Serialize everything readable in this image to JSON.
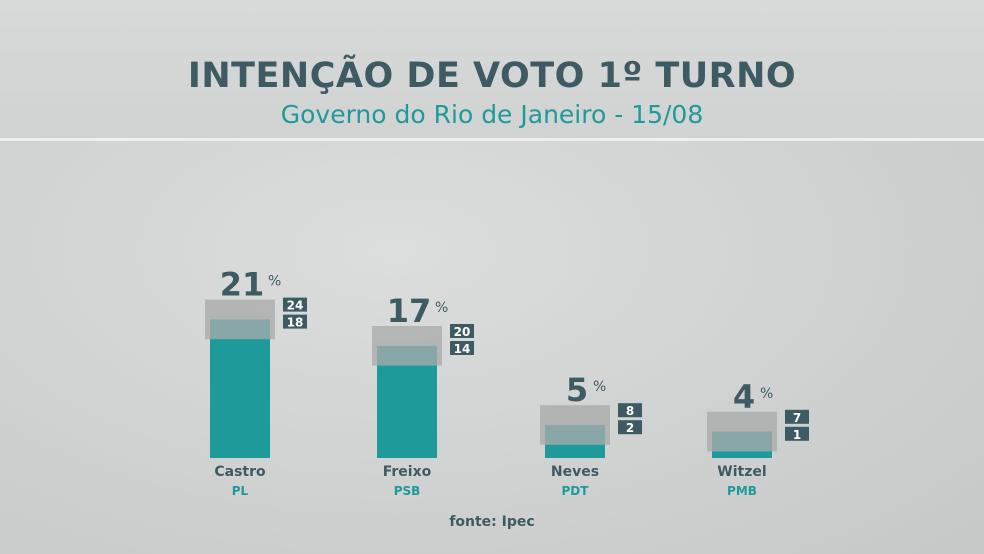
{
  "header": {
    "title": "INTENÇÃO DE VOTO 1º TURNO",
    "subtitle": "Governo do Rio de Janeiro - 15/08"
  },
  "footer": {
    "source": "fonte: Ipec"
  },
  "colors": {
    "title": "#3e5a62",
    "accent": "#1e9a9a",
    "bar": "#1e9a9a",
    "margin_box": "#a9abab",
    "range_box": "#3e5a62"
  },
  "chart_data": {
    "type": "bar",
    "title": "INTENÇÃO DE VOTO 1º TURNO",
    "subtitle": "Governo do Rio de Janeiro - 15/08",
    "value_suffix": "%",
    "categories": [
      "Castro",
      "Freixo",
      "Neves",
      "Witzel"
    ],
    "parties": [
      "PL",
      "PSB",
      "PDT",
      "PMB"
    ],
    "values": [
      21,
      17,
      5,
      4
    ],
    "upper": [
      24,
      20,
      8,
      7
    ],
    "lower": [
      18,
      14,
      2,
      1
    ],
    "ylim": [
      0,
      30
    ],
    "grid": false,
    "legend": "none"
  }
}
